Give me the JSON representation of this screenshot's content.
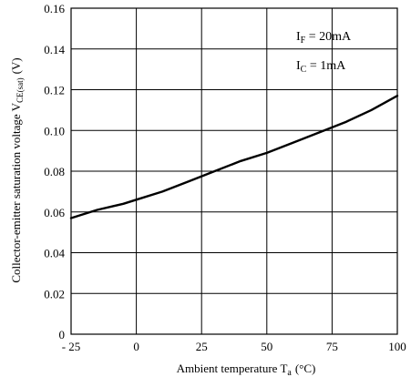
{
  "chart_data": {
    "type": "line",
    "xlabel": {
      "main": "Ambient temperature T",
      "sub": "a",
      "unit": "(°C)"
    },
    "ylabel": {
      "main": "Collector-emitter saturation voltage V",
      "sub": "CE(sat)",
      "unit": "(V)"
    },
    "xlim": [
      -25,
      100
    ],
    "ylim": [
      0,
      0.16
    ],
    "x_ticks": [
      -25,
      0,
      25,
      50,
      75,
      100
    ],
    "x_tick_labels": [
      "- 25",
      "0",
      "25",
      "50",
      "75",
      "100"
    ],
    "y_ticks": [
      0,
      0.02,
      0.04,
      0.06,
      0.08,
      0.1,
      0.12,
      0.14,
      0.16
    ],
    "y_tick_labels": [
      "0",
      "0.02",
      "0.04",
      "0.06",
      "0.08",
      "0.10",
      "0.12",
      "0.14",
      "0.16"
    ],
    "grid": true,
    "annotations": [
      {
        "main": "I",
        "sub": "F",
        "rest": " = 20mA"
      },
      {
        "main": "I",
        "sub": "C",
        "rest": " = 1mA"
      }
    ],
    "series": [
      {
        "x": [
          -25,
          -15,
          -5,
          0,
          10,
          20,
          30,
          40,
          50,
          60,
          70,
          80,
          90,
          100
        ],
        "y": [
          0.057,
          0.061,
          0.064,
          0.066,
          0.07,
          0.075,
          0.08,
          0.085,
          0.089,
          0.094,
          0.099,
          0.104,
          0.11,
          0.117
        ]
      }
    ]
  }
}
